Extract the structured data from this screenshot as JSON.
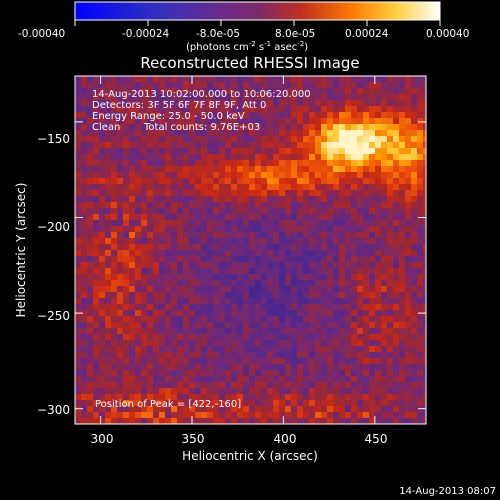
{
  "colorbar": {
    "ticks": [
      "-0.00040",
      "-0.00024",
      "-8.0e-05",
      "8.0e-05",
      "0.00024",
      "0.00040"
    ],
    "tick_values": [
      -0.0004,
      -0.00024,
      -8e-05,
      8e-05,
      0.00024,
      0.0004
    ],
    "range": [
      -0.0004,
      0.0004
    ],
    "unit_label": "(photons cm",
    "unit_exp1": "-2",
    "unit_mid": " s",
    "unit_exp2": "-1",
    "unit_mid2": " asec",
    "unit_exp3": "-2",
    "unit_end": ")",
    "colors": [
      "#0000ff",
      "#3a2cbf",
      "#5a2a9a",
      "#7a2a7a",
      "#b02a3a",
      "#e0401a",
      "#ff8000",
      "#ffcc30",
      "#ffffd0",
      "#ffffff"
    ]
  },
  "title": "Reconstructed RHESSI Image",
  "info": {
    "line1": "14-Aug-2013 10:02:00.000 to 10:06:20.000",
    "line2": "Detectors: 3F 5F 6F 7F 8F 9F, Att 0",
    "line3": "Energy Range: 25.0 - 50.0 keV",
    "line4_a": "Clean",
    "line4_b": "Total counts: 9.76E+03"
  },
  "peak_label": "Position of Peak = [422,-160]",
  "peak": [
    422,
    -160
  ],
  "x_axis": {
    "label": "Heliocentric X (arcsec)",
    "range": [
      286,
      478
    ],
    "ticks": [
      300,
      350,
      400,
      450
    ]
  },
  "y_axis": {
    "label": "Heliocentric Y (arcsec)",
    "range": [
      -308,
      -126
    ],
    "ticks": [
      -150,
      -200,
      -250,
      -300
    ],
    "tick_labels": [
      "−150",
      "−200",
      "−250",
      "−300"
    ]
  },
  "timestamp": "14-Aug-2013 08:07"
}
